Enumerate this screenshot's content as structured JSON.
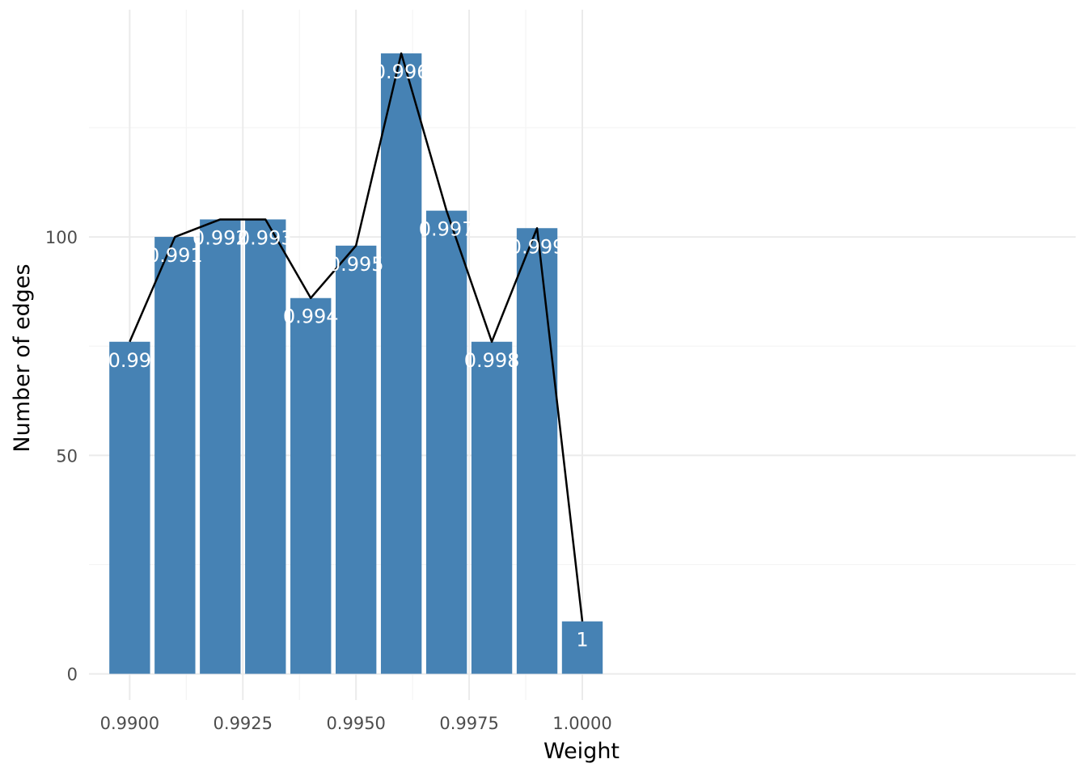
{
  "chart_data": {
    "type": "bar",
    "xlabel": "Weight",
    "ylabel": "Number of edges",
    "x": [
      0.99,
      0.991,
      0.992,
      0.993,
      0.994,
      0.995,
      0.996,
      0.997,
      0.998,
      0.999,
      1.0
    ],
    "values": [
      76,
      100,
      104,
      104,
      86,
      98,
      142,
      106,
      76,
      102,
      12
    ],
    "bar_labels": [
      "0.99",
      "0.991",
      "0.992",
      "0.993",
      "0.994",
      "0.995",
      "0.996",
      "0.997",
      "0.998",
      "0.999",
      "1"
    ],
    "overlay_line": {
      "type": "line",
      "values": [
        76,
        100,
        104,
        104,
        86,
        98,
        142,
        106,
        76,
        102,
        12
      ],
      "color": "#000000"
    },
    "xlim": [
      0.9891,
      1.0109
    ],
    "ylim": [
      -6,
      152
    ],
    "x_ticks": [
      0.99,
      0.9925,
      0.995,
      0.9975,
      1.0
    ],
    "x_tick_labels": [
      "0.9900",
      "0.9925",
      "0.9950",
      "0.9975",
      "1.0000"
    ],
    "y_ticks": [
      0,
      50,
      100
    ],
    "y_tick_labels": [
      "0",
      "50",
      "100"
    ],
    "grid": true,
    "legend": "none",
    "bar_color": "#4682b4"
  }
}
